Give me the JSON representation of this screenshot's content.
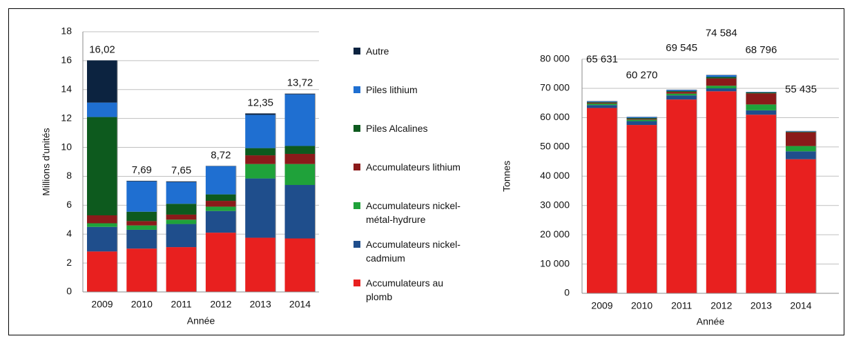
{
  "chart_data": [
    {
      "type": "bar",
      "stacked": true,
      "y_label": "Millions d'unités",
      "x_label": "Année",
      "categories": [
        "2009",
        "2010",
        "2011",
        "2012",
        "2013",
        "2014"
      ],
      "ylim": [
        0,
        18
      ],
      "yticks": [
        0,
        2,
        4,
        6,
        8,
        10,
        12,
        14,
        16,
        18
      ],
      "grid": true,
      "series": [
        {
          "name": "Accumulateurs au plomb",
          "color": "#e8201f",
          "values": [
            2.8,
            3.0,
            3.1,
            4.1,
            3.75,
            3.7
          ]
        },
        {
          "name": "Accumulateurs nickel-cadmium",
          "color": "#1f4e8c",
          "values": [
            1.7,
            1.3,
            1.6,
            1.5,
            4.1,
            3.7
          ]
        },
        {
          "name": "Accumulateurs nickel-métal-hydrure",
          "color": "#1fa23a",
          "values": [
            0.25,
            0.3,
            0.3,
            0.3,
            1.0,
            1.45
          ]
        },
        {
          "name": "Accumulateurs lithium",
          "color": "#8b1a1a",
          "values": [
            0.55,
            0.3,
            0.35,
            0.4,
            0.6,
            0.7
          ]
        },
        {
          "name": "Piles Alcalines",
          "color": "#0d5a1e",
          "values": [
            6.8,
            0.65,
            0.75,
            0.45,
            0.5,
            0.55
          ]
        },
        {
          "name": "Piles lithium",
          "color": "#1f6fd1",
          "values": [
            1.0,
            2.1,
            1.5,
            1.95,
            2.3,
            3.57
          ]
        },
        {
          "name": "Autre",
          "color": "#0c2340",
          "values": [
            2.92,
            0.04,
            0.05,
            0.02,
            0.1,
            0.05
          ]
        }
      ],
      "totals": {
        "values": [
          16.02,
          7.69,
          7.65,
          8.72,
          12.35,
          13.72
        ],
        "value_labels": [
          "16,02",
          "7,69",
          "7,65",
          "8,72",
          "12,35",
          "13,72"
        ]
      }
    },
    {
      "type": "bar",
      "stacked": true,
      "y_label": "Tonnes",
      "x_label": "Année",
      "categories": [
        "2009",
        "2010",
        "2011",
        "2012",
        "2013",
        "2014"
      ],
      "ylim": [
        0,
        80000
      ],
      "yticks": [
        0,
        {
          "value": 10000,
          "label": "10 000"
        },
        {
          "value": 20000,
          "label": "20 000"
        },
        {
          "value": 30000,
          "label": "30 000"
        },
        {
          "value": 40000,
          "label": "40 000"
        },
        {
          "value": 50000,
          "label": "50 000"
        },
        {
          "value": 60000,
          "label": "60 000"
        },
        {
          "value": 70000,
          "label": "70 000"
        },
        {
          "value": 80000,
          "label": "80 000"
        }
      ],
      "grid": true,
      "series": [
        {
          "color": "#e8201f",
          "values": [
            63300,
            57500,
            66200,
            69000,
            61000,
            45800
          ]
        },
        {
          "color": "#1f4e8c",
          "values": [
            1000,
            1300,
            1400,
            1000,
            1500,
            2700
          ]
        },
        {
          "color": "#1fa23a",
          "values": [
            500,
            500,
            600,
            900,
            2000,
            1800
          ]
        },
        {
          "color": "#8b1a1a",
          "values": [
            300,
            300,
            600,
            2500,
            3800,
            4700
          ]
        },
        {
          "color": "#0d5a1e",
          "values": [
            200,
            300,
            300,
            500,
            300,
            200
          ]
        },
        {
          "color": "#1f6fd1",
          "values": [
            200,
            300,
            350,
            600,
            150,
            150
          ]
        },
        {
          "color": "#0c2340",
          "values": [
            131,
            70,
            95,
            84,
            46,
            85
          ]
        }
      ],
      "totals": {
        "values": [
          65631,
          60270,
          69545,
          74584,
          68796,
          55435
        ],
        "value_labels": [
          "65 631",
          "60 270",
          "69 545",
          "74 584",
          "68 796",
          "55 435"
        ]
      }
    }
  ]
}
